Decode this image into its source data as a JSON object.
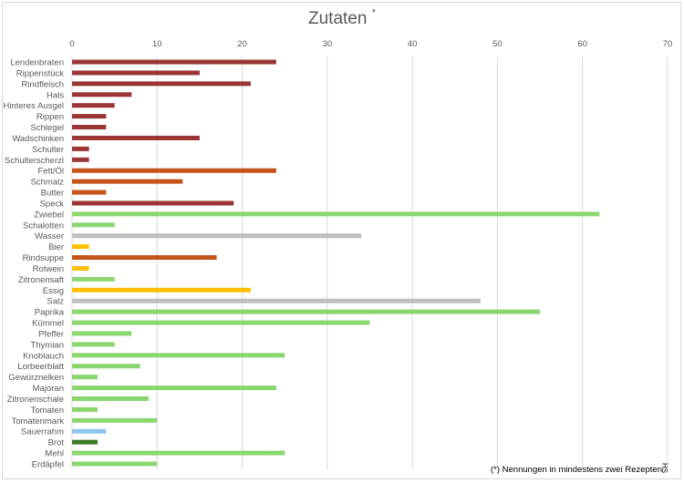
{
  "chart_data": {
    "type": "bar",
    "orientation": "horizontal",
    "title": "Zutaten",
    "title_marker": "*",
    "xlim": [
      0,
      70
    ],
    "xticks": [
      0,
      10,
      20,
      30,
      40,
      50,
      60,
      70
    ],
    "grid": true,
    "legend": "none",
    "categories": [
      "Lendenbraten",
      "Rippenstück",
      "Rindfleisch",
      "Hals",
      "Hinteres Ausgel",
      "Rippen",
      "Schlegel",
      "Wadschinken",
      "Schulter",
      "Schulterscherzl",
      "Fett/Öl",
      "Schmalz",
      "Butter",
      "Speck",
      "Zwiebel",
      "Schalotten",
      "Wasser",
      "Bier",
      "Rindsuppe",
      "Rotwein",
      "Zitronensaft",
      "Essig",
      "Salz",
      "Paprika",
      "Kümmel",
      "Pfeffer",
      "Thymian",
      "Knoblauch",
      "Lorbeerblatt",
      "Gewürznelken",
      "Majoran",
      "Zitronenschale",
      "Tomaten",
      "Tomatenmark",
      "Sauerrahm",
      "Brot",
      "Mehl",
      "Erdäpfel"
    ],
    "values": [
      24,
      15,
      21,
      7,
      5,
      4,
      4,
      15,
      2,
      2,
      24,
      13,
      4,
      19,
      62,
      5,
      34,
      2,
      17,
      2,
      5,
      21,
      48,
      55,
      35,
      7,
      5,
      25,
      8,
      3,
      24,
      9,
      3,
      10,
      4,
      3,
      25,
      10
    ],
    "bar_colors": [
      "#9B3535",
      "#9B3535",
      "#9B3535",
      "#9B3535",
      "#9B3535",
      "#9B3535",
      "#9B3535",
      "#9B3535",
      "#9B3535",
      "#9B3535",
      "#C5531A",
      "#C5531A",
      "#C5531A",
      "#9B3535",
      "#8AD76F",
      "#8AD76F",
      "#BFBFBF",
      "#FFC000",
      "#C5531A",
      "#FFC000",
      "#8AD76F",
      "#FFC000",
      "#BFBFBF",
      "#8AD76F",
      "#8AD76F",
      "#8AD76F",
      "#8AD76F",
      "#8AD76F",
      "#8AD76F",
      "#8AD76F",
      "#8AD76F",
      "#8AD76F",
      "#8AD76F",
      "#8AD76F",
      "#8CC6EA",
      "#3B7A24",
      "#8AD76F",
      "#8AD76F"
    ],
    "footnote": "(*) Nennungen in mindestens zwei Rezepten",
    "signature": "HS"
  }
}
